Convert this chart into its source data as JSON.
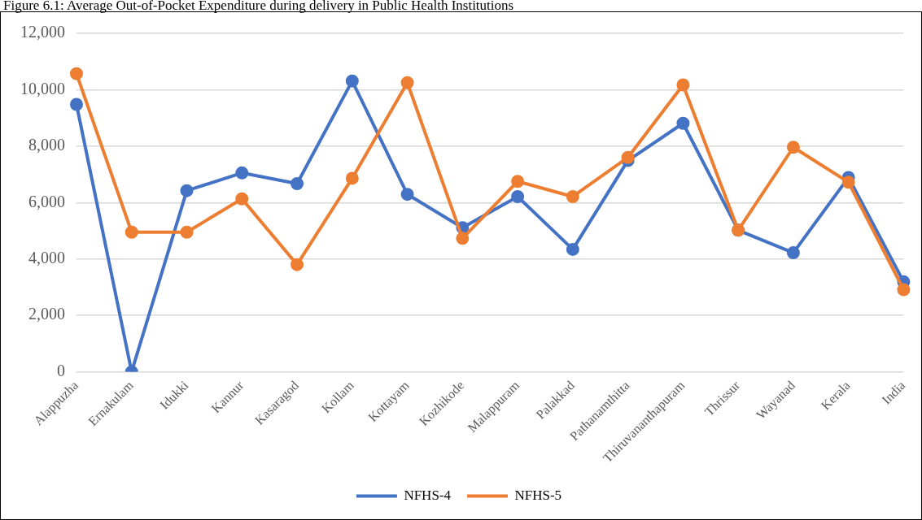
{
  "chart_data": {
    "type": "line",
    "title": "Figure 6.1: Average Out-of-Pocket Expenditure during delivery in Public Health Institutions",
    "categories": [
      "Alappuzha",
      "Ernakulam",
      "Idukki",
      "Kannur",
      "Kasaragod",
      "Kollam",
      "Kottayam",
      "Kozhikode",
      "Malappuram",
      "Palakkad",
      "Pathanamthitta",
      "Thiruvananthapuram",
      "Thrissur",
      "Wayanad",
      "Kerala",
      "India"
    ],
    "series": [
      {
        "name": "NFHS-4",
        "color": "#4472c4",
        "values": [
          9480,
          0,
          6420,
          7050,
          6670,
          10310,
          6290,
          5110,
          6210,
          4340,
          7490,
          8810,
          5020,
          4220,
          6890,
          3190
        ]
      },
      {
        "name": "NFHS-5",
        "color": "#ed7d31",
        "values": [
          10570,
          4950,
          4950,
          6130,
          3800,
          6860,
          10250,
          4730,
          6750,
          6210,
          7600,
          10170,
          5020,
          7960,
          6720,
          2910
        ]
      }
    ],
    "ylim": [
      0,
      12000
    ],
    "yticks": [
      0,
      {
        "value": 2000,
        "label": "2,000"
      },
      {
        "value": 4000,
        "label": "4,000"
      },
      {
        "value": 6000,
        "label": "6,000"
      },
      {
        "value": 8000,
        "label": "8,000"
      },
      {
        "value": 10000,
        "label": "10,000"
      },
      {
        "value": 12000,
        "label": "12,000"
      }
    ],
    "grid": "y",
    "legend": "bottom",
    "marker": "circle",
    "line_style": "solid"
  }
}
